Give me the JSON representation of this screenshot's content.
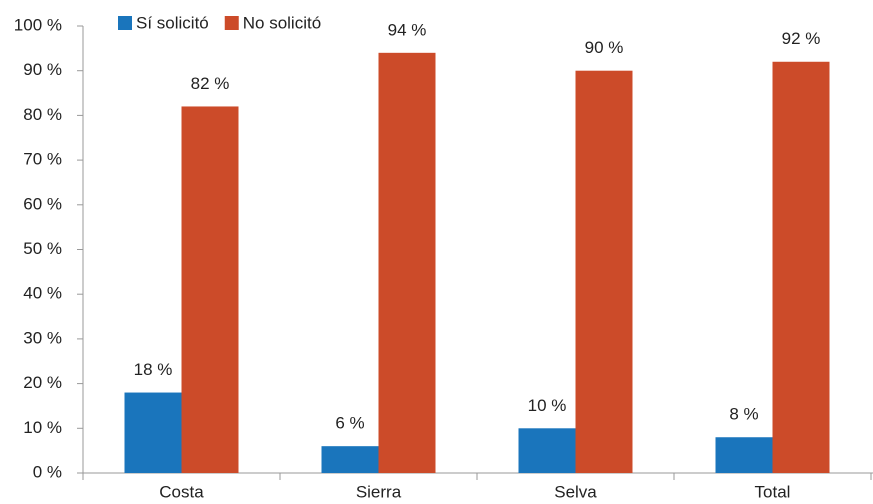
{
  "chart_data": {
    "type": "bar",
    "categories": [
      "Costa",
      "Sierra",
      "Selva",
      "Total"
    ],
    "series": [
      {
        "name": "Sí solicitó",
        "color": "#1a75bc",
        "values": [
          18,
          6,
          10,
          8
        ],
        "value_labels": [
          "18 %",
          "6 %",
          "10 %",
          "8 %"
        ]
      },
      {
        "name": "No solicitó",
        "color": "#cc4b29",
        "values": [
          82,
          94,
          90,
          92
        ],
        "value_labels": [
          "82 %",
          "94 %",
          "90 %",
          "92 %"
        ]
      }
    ],
    "ylim": [
      0,
      100
    ],
    "yticks": [
      {
        "value": 0,
        "label": "0 %"
      },
      {
        "value": 10,
        "label": "10 %"
      },
      {
        "value": 20,
        "label": "20 %"
      },
      {
        "value": 30,
        "label": "30 %"
      },
      {
        "value": 40,
        "label": "40 %"
      },
      {
        "value": 50,
        "label": "50 %"
      },
      {
        "value": 60,
        "label": "60 %"
      },
      {
        "value": 70,
        "label": "70 %"
      },
      {
        "value": 80,
        "label": "80 %"
      },
      {
        "value": 90,
        "label": "90 %"
      },
      {
        "value": 100,
        "label": "100 %"
      }
    ],
    "grid": false,
    "legend": "top"
  }
}
